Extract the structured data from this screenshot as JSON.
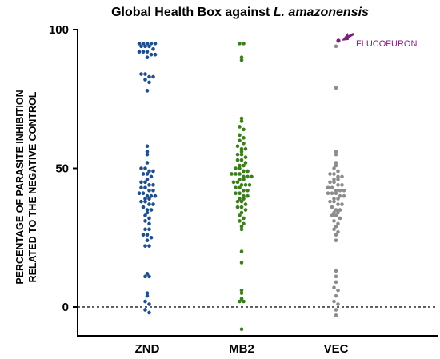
{
  "chart_data": {
    "type": "scatter",
    "title_prefix": "Global Health Box against ",
    "title_italic": "L. amazonensis",
    "ylabel_line1": "PERCENTAGE OF PARASITE INHIBITION",
    "ylabel_line2": "RELATED TO THE NEGATIVE CONTROL",
    "ylim": [
      -10,
      100
    ],
    "yticks": [
      "0",
      "50",
      "100"
    ],
    "reference_line_y": 0,
    "categories": [
      "ZND",
      "MB2",
      "VEC"
    ],
    "series": [
      {
        "category": "ZND",
        "color": "#1f4e8c",
        "values": [
          95,
          95,
          95,
          95,
          95,
          94,
          94,
          94,
          93,
          92,
          92,
          92,
          91,
          91,
          90,
          84,
          84,
          83,
          83,
          82,
          81,
          78,
          58,
          56,
          55,
          52,
          50,
          50,
          49,
          49,
          48,
          48,
          47,
          46,
          45,
          45,
          44,
          44,
          43,
          43,
          42,
          42,
          41,
          41,
          40,
          40,
          40,
          39,
          39,
          38,
          38,
          37,
          37,
          36,
          35,
          35,
          34,
          33,
          32,
          31,
          30,
          28,
          28,
          26,
          26,
          25,
          24,
          22,
          22,
          12,
          11,
          11,
          5,
          4,
          2,
          1,
          -1,
          -2
        ]
      },
      {
        "category": "MB2",
        "color": "#3c7d1e",
        "values": [
          95,
          95,
          90,
          89,
          68,
          67,
          65,
          64,
          62,
          61,
          60,
          59,
          58,
          57,
          57,
          56,
          55,
          55,
          54,
          53,
          53,
          52,
          51,
          51,
          50,
          50,
          49,
          49,
          48,
          48,
          48,
          47,
          47,
          47,
          46,
          46,
          45,
          45,
          44,
          44,
          44,
          43,
          43,
          42,
          42,
          41,
          41,
          40,
          40,
          39,
          39,
          38,
          38,
          37,
          36,
          36,
          35,
          34,
          33,
          32,
          31,
          30,
          29,
          28,
          20,
          16,
          6,
          5,
          3,
          2,
          2,
          -8
        ]
      },
      {
        "category": "VEC",
        "color": "#8c8c8c",
        "values": [
          94,
          79,
          56,
          55,
          52,
          51,
          50,
          49,
          48,
          48,
          47,
          47,
          46,
          46,
          45,
          45,
          44,
          44,
          43,
          43,
          42,
          42,
          42,
          41,
          41,
          41,
          40,
          40,
          39,
          39,
          38,
          38,
          37,
          37,
          36,
          35,
          35,
          34,
          34,
          33,
          33,
          32,
          31,
          30,
          29,
          28,
          27,
          26,
          24,
          13,
          11,
          9,
          7,
          6,
          4,
          2,
          1,
          -1,
          -3
        ]
      }
    ],
    "highlight": {
      "category": "VEC",
      "value": 96,
      "label": "FLUCOFURON",
      "color": "#7b1f7e"
    }
  }
}
